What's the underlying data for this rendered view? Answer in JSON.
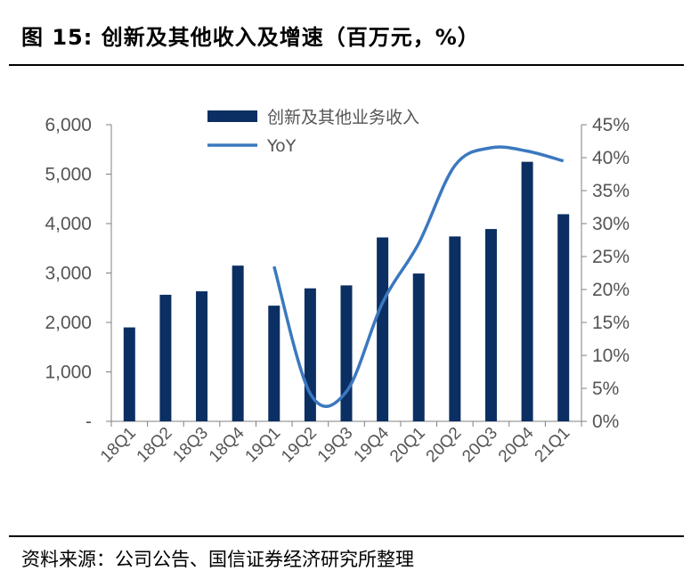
{
  "header": {
    "title": "图 15:  创新及其他收入及增速（百万元，%）"
  },
  "footer": {
    "source": "资料来源：公司公告、国信证券经济研究所整理"
  },
  "chart_data": {
    "type": "bar+line",
    "categories": [
      "18Q1",
      "18Q2",
      "18Q3",
      "18Q4",
      "19Q1",
      "19Q2",
      "19Q3",
      "19Q4",
      "20Q1",
      "20Q2",
      "20Q3",
      "20Q4",
      "21Q1"
    ],
    "series": [
      {
        "name": "创新及其他业务收入",
        "type": "bar",
        "axis": "left",
        "values": [
          1900,
          2560,
          2630,
          3150,
          2340,
          2690,
          2750,
          3720,
          2990,
          3740,
          3890,
          5250,
          4190
        ],
        "color": "#0b2f63"
      },
      {
        "name": "YoY",
        "type": "line",
        "axis": "right",
        "values": [
          null,
          null,
          null,
          null,
          23.5,
          4.2,
          4.5,
          18.0,
          27.0,
          38.8,
          41.5,
          41.0,
          39.5
        ],
        "color": "#3b78bf"
      }
    ],
    "y_left": {
      "min": 0,
      "max": 6000,
      "ticks": [
        0,
        1000,
        2000,
        3000,
        4000,
        5000,
        6000
      ],
      "tick_labels": [
        "-",
        "1,000",
        "2,000",
        "3,000",
        "4,000",
        "5,000",
        "6,000"
      ]
    },
    "y_right": {
      "min": 0,
      "max": 45,
      "ticks": [
        0,
        5,
        10,
        15,
        20,
        25,
        30,
        35,
        40,
        45
      ],
      "tick_labels": [
        "0%",
        "5%",
        "10%",
        "15%",
        "20%",
        "25%",
        "30%",
        "35%",
        "40%",
        "45%"
      ]
    },
    "legend": "top-center",
    "grid": false
  }
}
